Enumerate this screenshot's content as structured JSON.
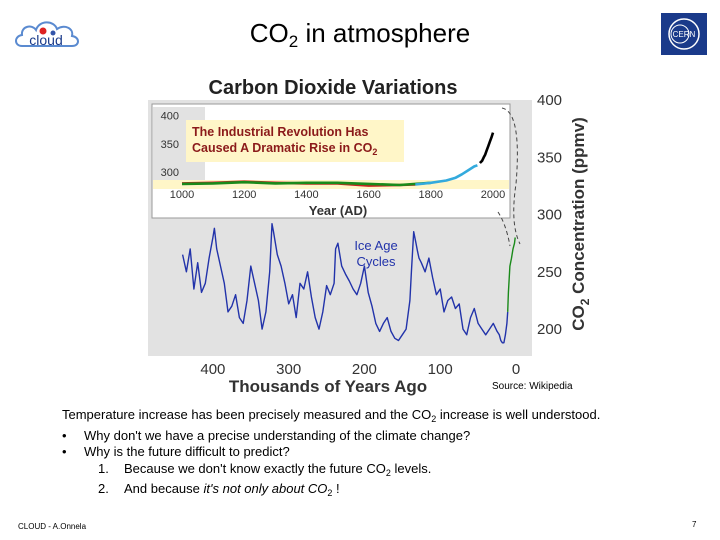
{
  "slide": {
    "title_main": "CO",
    "title_sub": "2",
    "title_rest": " in atmosphere",
    "logo_left_text": "cloud",
    "logo_right_text": "CERN",
    "source": "Source: Wikipedia",
    "body": {
      "line1_a": "Temperature increase has been precisely measured and the CO",
      "line1_sub": "2",
      "line1_b": " increase is well understood.",
      "bullet_marker": "•",
      "bullet1": "Why don't we have a precise understanding of the climate change?",
      "bullet2": "Why is the future difficult to predict?",
      "num1_marker": "1.",
      "num1_a": "Because we don't know exactly the future CO",
      "num1_sub": "2",
      "num1_b": " levels.",
      "num2_marker": "2.",
      "num2_a": "And because ",
      "num2_italic": "it's not only about CO",
      "num2_sub": "2",
      "num2_b": " !"
    },
    "footer_left": "CLOUD - A.Onnela",
    "page_number": "7"
  },
  "chart_data": {
    "type": "line",
    "title": "Carbon Dioxide Variations",
    "ylabel": "CO2 Concentration (ppmv)",
    "ylim": [
      180,
      400
    ],
    "yticks": [
      200,
      250,
      300,
      350,
      400
    ],
    "xlabel": "Thousands of Years Ago",
    "xlim": [
      450,
      0
    ],
    "xticks": [
      400,
      300,
      200,
      100,
      0
    ],
    "annotation": "Ice Age Cycles",
    "series": [
      {
        "color": "#2233aa",
        "x": [
          440,
          435,
          430,
          425,
          420,
          415,
          410,
          405,
          400,
          398,
          395,
          390,
          385,
          380,
          375,
          370,
          365,
          360,
          355,
          350,
          345,
          340,
          335,
          330,
          325,
          322,
          320,
          315,
          310,
          305,
          300,
          295,
          290,
          285,
          280,
          275,
          270,
          265,
          260,
          255,
          250,
          245,
          240,
          238,
          235,
          230,
          225,
          220,
          215,
          210,
          205,
          200,
          195,
          190,
          185,
          180,
          175,
          170,
          165,
          160,
          155,
          150,
          145,
          140,
          138,
          135,
          132,
          130,
          128,
          125,
          120,
          115,
          110,
          105,
          100,
          95,
          90,
          85,
          80,
          75,
          70,
          65,
          60,
          55,
          50,
          45,
          40,
          35,
          30,
          25,
          22,
          20,
          18,
          16,
          14,
          12,
          11
        ],
        "values": [
          265,
          250,
          270,
          235,
          258,
          232,
          240,
          262,
          280,
          288,
          270,
          255,
          240,
          215,
          220,
          230,
          210,
          205,
          225,
          255,
          240,
          225,
          200,
          215,
          250,
          292,
          285,
          265,
          255,
          240,
          222,
          230,
          210,
          240,
          235,
          250,
          228,
          210,
          200,
          215,
          238,
          230,
          240,
          270,
          275,
          255,
          248,
          242,
          235,
          230,
          240,
          255,
          232,
          220,
          205,
          198,
          205,
          210,
          198,
          192,
          190,
          195,
          200,
          225,
          250,
          285,
          275,
          268,
          262,
          258,
          250,
          262,
          245,
          230,
          235,
          215,
          225,
          228,
          218,
          222,
          200,
          195,
          210,
          218,
          205,
          200,
          195,
          200,
          205,
          198,
          195,
          190,
          188,
          188,
          195,
          205,
          215
        ]
      },
      {
        "color": "#1a8a1a",
        "x": [
          11,
          10,
          8,
          6,
          4,
          2,
          1
        ],
        "values": [
          215,
          232,
          255,
          262,
          270,
          275,
          280
        ]
      }
    ],
    "inset": {
      "type": "line",
      "title": "The Industrial Revolution Has Caused A Dramatic Rise in CO2",
      "xlabel": "Year (AD)",
      "xlim": [
        1000,
        2000
      ],
      "xticks": [
        1000,
        1200,
        1400,
        1600,
        1800,
        2000
      ],
      "ylim": [
        270,
        410
      ],
      "yticks": [
        300,
        350,
        400
      ],
      "series": [
        {
          "color": "#cc2222",
          "x": [
            1000,
            1100,
            1200,
            1300,
            1400,
            1500,
            1600,
            1700,
            1750
          ],
          "values": [
            280,
            281,
            283,
            281,
            280,
            280,
            276,
            277,
            278
          ]
        },
        {
          "color": "#1a8a1a",
          "x": [
            1000,
            1100,
            1200,
            1300,
            1400,
            1500,
            1600,
            1700,
            1800
          ],
          "values": [
            279,
            280,
            282,
            280,
            281,
            281,
            279,
            277,
            281
          ]
        },
        {
          "color": "#33aadd",
          "x": [
            1750,
            1800,
            1850,
            1880,
            1900,
            1920,
            1940,
            1950
          ],
          "values": [
            278,
            281,
            285,
            290,
            296,
            303,
            310,
            312
          ]
        },
        {
          "color": "#000000",
          "x": [
            1958,
            1965,
            1970,
            1975,
            1980,
            1985,
            1990,
            1995,
            2000
          ],
          "values": [
            316,
            320,
            326,
            331,
            339,
            346,
            354,
            361,
            370
          ]
        }
      ]
    }
  }
}
